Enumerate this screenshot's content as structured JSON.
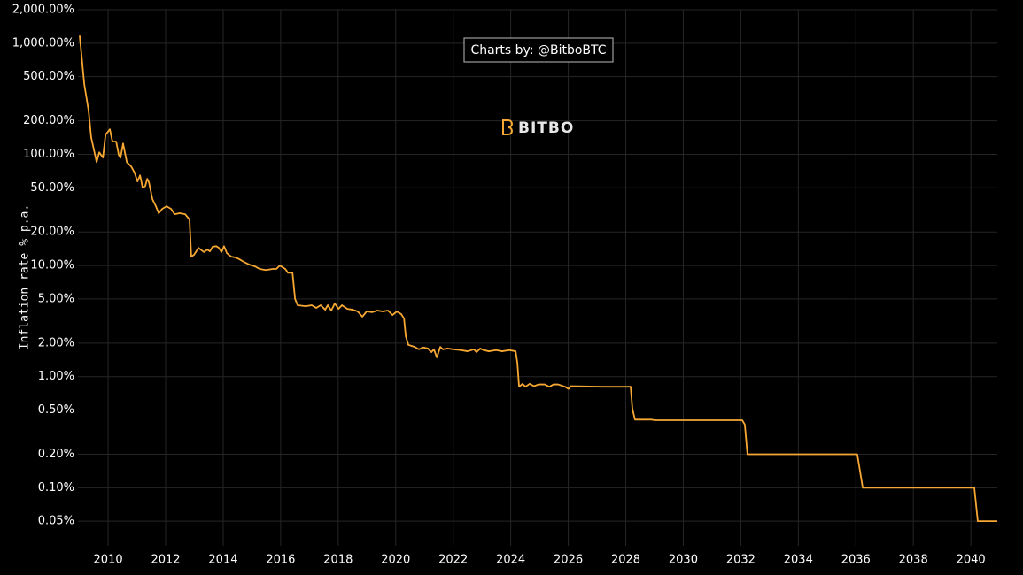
{
  "chart_data": {
    "type": "line",
    "ylabel": "Inflation rate % p.a.",
    "annotation": "Charts by: @BitboBTC",
    "watermark": "BITBO",
    "log_y": true,
    "grid": true,
    "color": "#f7a833",
    "xlim": [
      2008.95,
      2040.92
    ],
    "xticks": [
      2010,
      2012,
      2014,
      2016,
      2018,
      2020,
      2022,
      2024,
      2026,
      2028,
      2030,
      2032,
      2034,
      2036,
      2038,
      2040
    ],
    "ylim": [
      0.03,
      2000
    ],
    "yticks": [
      {
        "value": 2000,
        "label": "2,000.00%"
      },
      {
        "value": 1000,
        "label": "1,000.00%"
      },
      {
        "value": 500,
        "label": "500.00%"
      },
      {
        "value": 200,
        "label": "200.00%"
      },
      {
        "value": 100,
        "label": "100.00%"
      },
      {
        "value": 50,
        "label": "50.00%"
      },
      {
        "value": 20,
        "label": "20.00%"
      },
      {
        "value": 10,
        "label": "10.00%"
      },
      {
        "value": 5,
        "label": "5.00%"
      },
      {
        "value": 2,
        "label": "2.00%"
      },
      {
        "value": 1,
        "label": "1.00%"
      },
      {
        "value": 0.5,
        "label": "0.50%"
      },
      {
        "value": 0.2,
        "label": "0.20%"
      },
      {
        "value": 0.1,
        "label": "0.10%"
      },
      {
        "value": 0.05,
        "label": "0.05%"
      }
    ],
    "x": [
      2009.01,
      2009.17,
      2009.32,
      2009.41,
      2009.6,
      2009.69,
      2009.82,
      2009.91,
      2010.06,
      2010.15,
      2010.28,
      2010.37,
      2010.43,
      2010.52,
      2010.65,
      2010.8,
      2010.92,
      2011.02,
      2011.11,
      2011.2,
      2011.29,
      2011.36,
      2011.42,
      2011.54,
      2011.66,
      2011.76,
      2011.88,
      2012.03,
      2012.19,
      2012.31,
      2012.49,
      2012.68,
      2012.83,
      2012.89,
      2012.99,
      2013.14,
      2013.33,
      2013.45,
      2013.54,
      2013.63,
      2013.76,
      2013.85,
      2013.94,
      2014.03,
      2014.13,
      2014.28,
      2014.43,
      2014.56,
      2014.71,
      2014.9,
      2015.11,
      2015.27,
      2015.48,
      2015.73,
      2015.85,
      2015.97,
      2016.16,
      2016.25,
      2016.41,
      2016.5,
      2016.59,
      2016.87,
      2017.08,
      2017.24,
      2017.39,
      2017.55,
      2017.64,
      2017.76,
      2017.88,
      2018.01,
      2018.13,
      2018.32,
      2018.5,
      2018.68,
      2018.84,
      2018.99,
      2019.18,
      2019.36,
      2019.55,
      2019.73,
      2019.89,
      2020.04,
      2020.19,
      2020.29,
      2020.35,
      2020.44,
      2020.66,
      2020.81,
      2020.96,
      2021.12,
      2021.24,
      2021.33,
      2021.43,
      2021.55,
      2021.64,
      2021.8,
      2022.01,
      2022.26,
      2022.5,
      2022.72,
      2022.81,
      2022.94,
      2023.06,
      2023.24,
      2023.49,
      2023.7,
      2023.95,
      2024.17,
      2024.23,
      2024.29,
      2024.41,
      2024.51,
      2024.66,
      2024.81,
      2024.97,
      2025.18,
      2025.34,
      2025.49,
      2025.65,
      2025.89,
      2026.01,
      2026.08,
      2027.19,
      2028.17,
      2028.23,
      2028.32,
      2028.91,
      2029.0,
      2032.05,
      2032.14,
      2032.23,
      2036.05,
      2036.24,
      2040.12,
      2040.24,
      2040.92
    ],
    "values": [
      1170,
      427,
      247,
      142,
      85,
      104,
      93.5,
      150,
      168,
      130,
      130,
      98.7,
      93,
      125,
      85,
      77.8,
      68.4,
      57,
      64.7,
      50,
      51.9,
      60.2,
      55.8,
      39.5,
      34.1,
      29.5,
      32.3,
      34.1,
      32.3,
      28.9,
      29.5,
      28.9,
      25.9,
      12.0,
      12.5,
      14.4,
      13.2,
      13.9,
      13.4,
      14.7,
      14.9,
      14.4,
      13.2,
      14.9,
      12.9,
      12.0,
      11.8,
      11.4,
      10.8,
      10.2,
      9.8,
      9.3,
      9.1,
      9.3,
      9.3,
      10.0,
      9.3,
      8.6,
      8.6,
      5.0,
      4.39,
      4.3,
      4.39,
      4.15,
      4.39,
      4.0,
      4.39,
      3.93,
      4.55,
      4.07,
      4.39,
      4.07,
      4.0,
      3.86,
      3.46,
      3.86,
      3.8,
      3.93,
      3.86,
      3.93,
      3.58,
      3.86,
      3.65,
      3.33,
      2.31,
      1.93,
      1.85,
      1.76,
      1.83,
      1.79,
      1.66,
      1.76,
      1.49,
      1.85,
      1.76,
      1.79,
      1.76,
      1.73,
      1.69,
      1.76,
      1.66,
      1.79,
      1.73,
      1.69,
      1.73,
      1.69,
      1.73,
      1.69,
      1.33,
      0.81,
      0.86,
      0.81,
      0.86,
      0.82,
      0.85,
      0.85,
      0.81,
      0.85,
      0.85,
      0.81,
      0.775,
      0.82,
      0.81,
      0.81,
      0.514,
      0.41,
      0.41,
      0.405,
      0.405,
      0.37,
      0.2,
      0.2,
      0.1,
      0.1,
      0.05,
      0.05
    ]
  }
}
